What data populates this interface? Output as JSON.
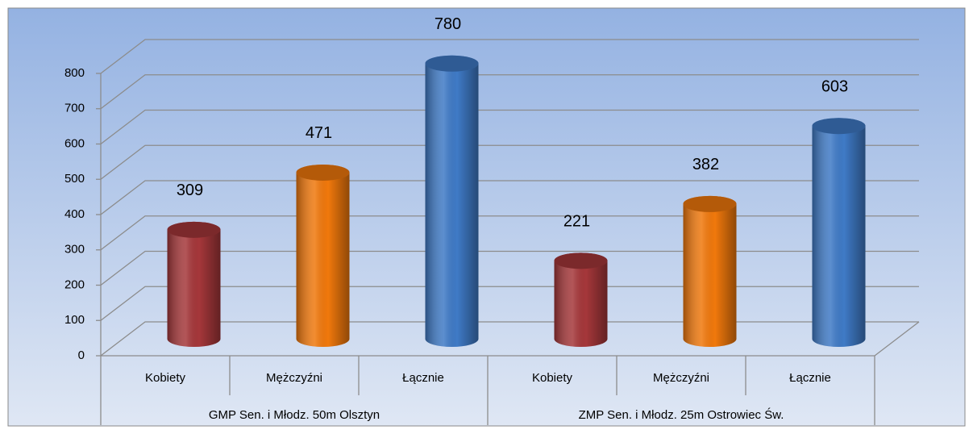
{
  "chart_data": {
    "type": "bar3d",
    "groups": [
      {
        "name": "GMP Sen. i Młodz. 50m Olsztyn",
        "categories": [
          "Kobiety",
          "Mężczyźni",
          "Łącznie"
        ],
        "values": [
          309,
          471,
          780
        ]
      },
      {
        "name": "ZMP Sen. i Młodz. 25m Ostrowiec Św.",
        "categories": [
          "Kobiety",
          "Mężczyźni",
          "Łącznie"
        ],
        "values": [
          221,
          382,
          603
        ]
      }
    ],
    "colors": [
      "#a5373a",
      "#f0780c",
      "#3f7ac6"
    ],
    "ylim": [
      0,
      800
    ],
    "yticks": [
      0,
      100,
      200,
      300,
      400,
      500,
      600,
      700,
      800
    ],
    "grid": true
  }
}
